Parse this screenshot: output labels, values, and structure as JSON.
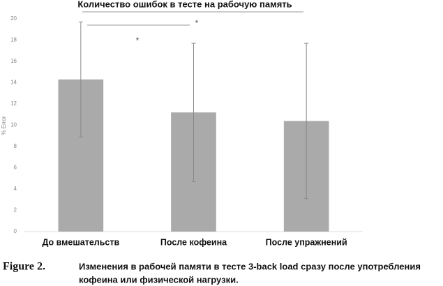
{
  "chart_data": {
    "type": "bar",
    "title": "Количество ошибок в тесте на рабочую память",
    "ylabel": "% Error",
    "categories": [
      "До вмешательств",
      "После кофеина",
      "После упражнений"
    ],
    "values": [
      14.3,
      11.2,
      10.4
    ],
    "errors": [
      5.4,
      6.5,
      7.3
    ],
    "color": "#aaaaaa",
    "ylim": [
      0,
      20
    ],
    "yticks": [
      0,
      2,
      4,
      6,
      8,
      10,
      12,
      14,
      16,
      18,
      20
    ],
    "annotations": [
      "*",
      "*"
    ]
  },
  "caption": {
    "label": "Figure 2.",
    "lines": [
      "Изменения в рабочей памяти в тесте 3-back load сразу после употребления",
      "кофеина или физической нагрузки."
    ]
  }
}
